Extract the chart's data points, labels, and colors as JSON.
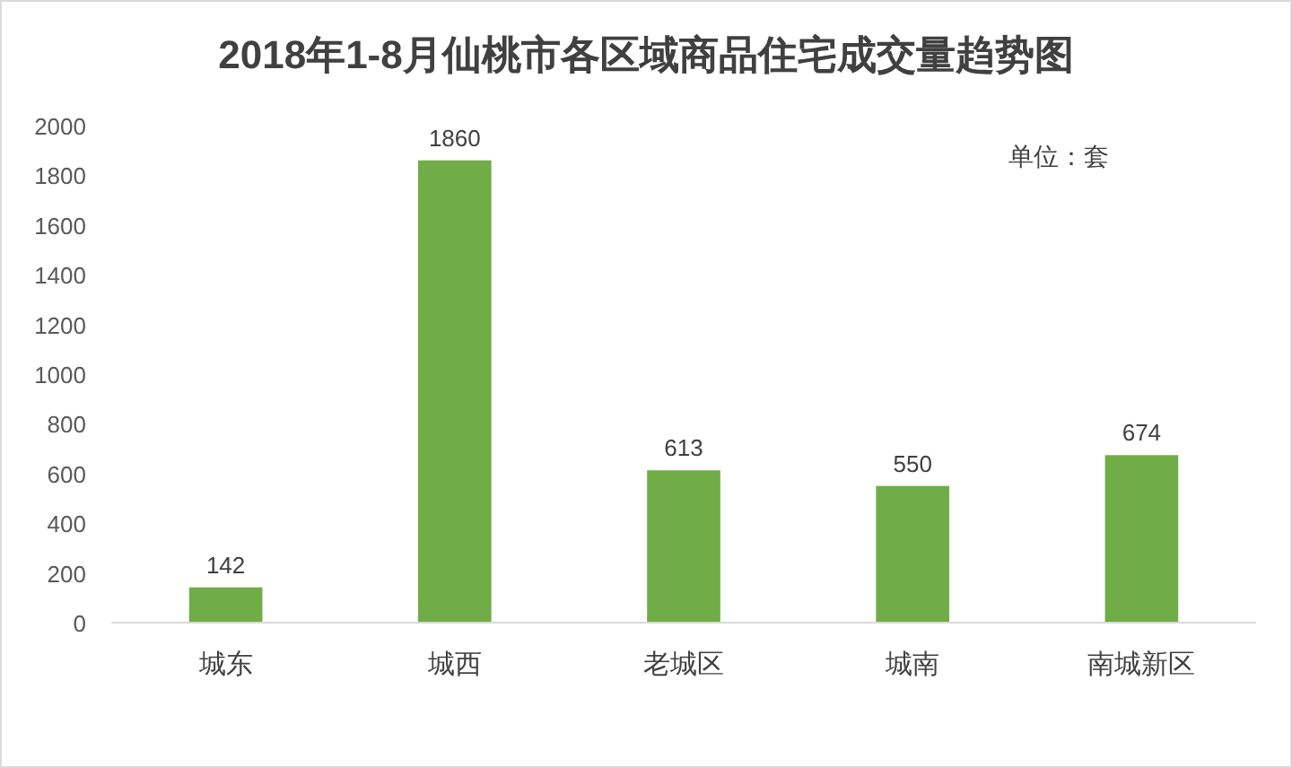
{
  "chart_data": {
    "type": "bar",
    "title": "2018年1-8月仙桃市各区域商品住宅成交量趋势图",
    "categories": [
      "城东",
      "城西",
      "老城区",
      "城南",
      "南城新区"
    ],
    "values": [
      142,
      1860,
      613,
      550,
      674
    ],
    "color": "#70ad47",
    "ylim": [
      0,
      2000
    ],
    "yticks": [
      0,
      200,
      400,
      600,
      800,
      1000,
      1200,
      1400,
      1600,
      1800,
      2000
    ],
    "grid": false,
    "data_labels": true,
    "annotations": [
      "单位：套"
    ]
  }
}
